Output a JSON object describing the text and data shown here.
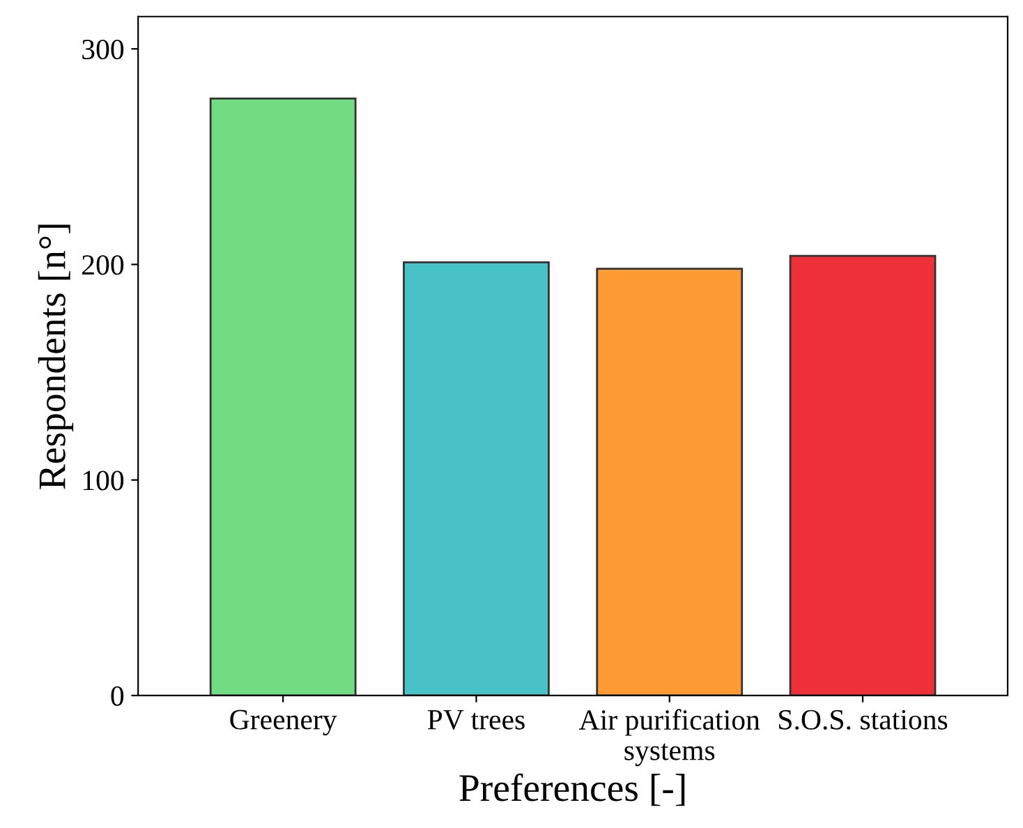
{
  "chart_data": {
    "type": "bar",
    "xlabel": "Preferences [-]",
    "ylabel": "Respondents [n°]",
    "categories": [
      "Greenery",
      "PV trees",
      "Air purification\nsystems",
      "S.O.S. stations"
    ],
    "values": [
      277,
      201,
      198,
      204
    ],
    "colors": [
      "#72dc82",
      "#48c2c6",
      "#fd9a33",
      "#ee3038"
    ],
    "ylim": [
      0,
      315
    ],
    "yticks": [
      0,
      100,
      200,
      300
    ],
    "grid": false
  }
}
